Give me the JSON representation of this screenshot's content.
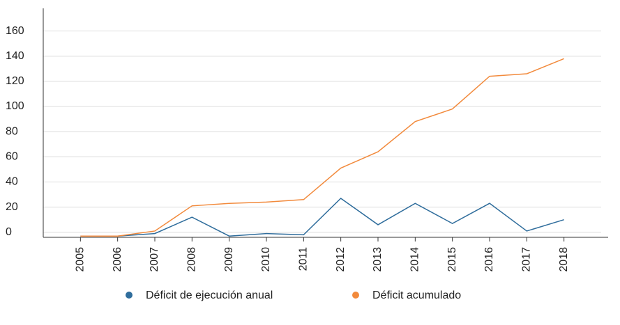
{
  "chart_data": {
    "type": "line",
    "categories": [
      "2005",
      "2006",
      "2007",
      "2008",
      "2009",
      "2010",
      "2011",
      "2012",
      "2013",
      "2014",
      "2015",
      "2016",
      "2017",
      "2018"
    ],
    "series": [
      {
        "name": "Déficit de ejecución anual",
        "color": "#2f6d9c",
        "values": [
          -3,
          -3,
          -1,
          12,
          -3,
          -1,
          -2,
          27,
          6,
          23,
          7,
          23,
          1,
          10
        ]
      },
      {
        "name": "Déficit acumulado",
        "color": "#f28a3c",
        "values": [
          -3,
          -3,
          1,
          21,
          23,
          24,
          26,
          51,
          64,
          88,
          98,
          124,
          126,
          138
        ]
      }
    ],
    "ylim": [
      -4,
      178
    ],
    "yticks": [
      0,
      20,
      40,
      60,
      80,
      100,
      120,
      140,
      160
    ],
    "grid": true
  }
}
